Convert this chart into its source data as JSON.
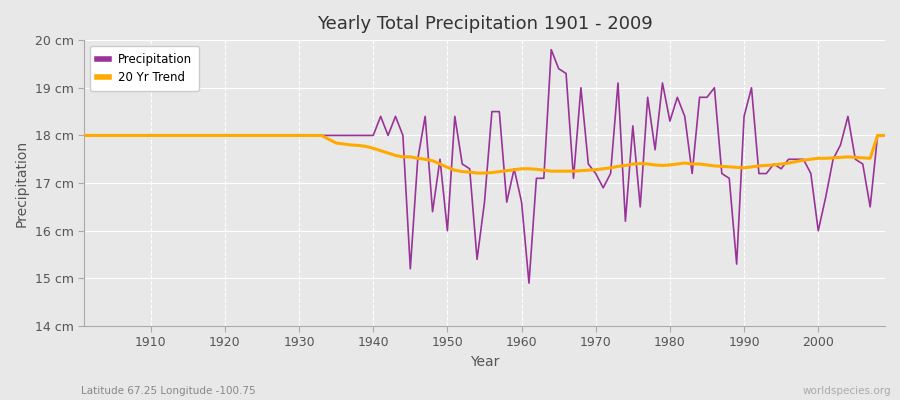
{
  "title": "Yearly Total Precipitation 1901 - 2009",
  "xlabel": "Year",
  "ylabel": "Precipitation",
  "bottom_left_label": "Latitude 67.25 Longitude -100.75",
  "bottom_right_label": "worldspecies.org",
  "ylim": [
    14,
    20
  ],
  "xlim": [
    1901,
    2009
  ],
  "yticks": [
    14,
    15,
    16,
    17,
    18,
    19,
    20
  ],
  "ytick_labels": [
    "14 cm",
    "15 cm",
    "16 cm",
    "17 cm",
    "18 cm",
    "19 cm",
    "20 cm"
  ],
  "xticks": [
    1910,
    1920,
    1930,
    1940,
    1950,
    1960,
    1970,
    1980,
    1990,
    2000
  ],
  "background_color": "#e8e8e8",
  "plot_bg_color": "#e8e8e8",
  "grid_color": "#ffffff",
  "precip_color": "#993399",
  "trend_color": "#ffaa00",
  "precip_linewidth": 1.2,
  "trend_linewidth": 2.2,
  "years": [
    1901,
    1902,
    1903,
    1904,
    1905,
    1906,
    1907,
    1908,
    1909,
    1910,
    1911,
    1912,
    1913,
    1914,
    1915,
    1916,
    1917,
    1918,
    1919,
    1920,
    1921,
    1922,
    1923,
    1924,
    1925,
    1926,
    1927,
    1928,
    1929,
    1930,
    1931,
    1932,
    1933,
    1934,
    1935,
    1936,
    1937,
    1938,
    1939,
    1940,
    1941,
    1942,
    1943,
    1944,
    1945,
    1946,
    1947,
    1948,
    1949,
    1950,
    1951,
    1952,
    1953,
    1954,
    1955,
    1956,
    1957,
    1958,
    1959,
    1960,
    1961,
    1962,
    1963,
    1964,
    1965,
    1966,
    1967,
    1968,
    1969,
    1970,
    1971,
    1972,
    1973,
    1974,
    1975,
    1976,
    1977,
    1978,
    1979,
    1980,
    1981,
    1982,
    1983,
    1984,
    1985,
    1986,
    1987,
    1988,
    1989,
    1990,
    1991,
    1992,
    1993,
    1994,
    1995,
    1996,
    1997,
    1998,
    1999,
    2000,
    2001,
    2002,
    2003,
    2004,
    2005,
    2006,
    2007,
    2008,
    2009
  ],
  "precip": [
    18.0,
    18.0,
    18.0,
    18.0,
    18.0,
    18.0,
    18.0,
    18.0,
    18.0,
    18.0,
    18.0,
    18.0,
    18.0,
    18.0,
    18.0,
    18.0,
    18.0,
    18.0,
    18.0,
    18.0,
    18.0,
    18.0,
    18.0,
    18.0,
    18.0,
    18.0,
    18.0,
    18.0,
    18.0,
    18.0,
    18.0,
    18.0,
    18.0,
    18.0,
    18.0,
    18.0,
    18.0,
    18.0,
    18.0,
    18.0,
    18.4,
    18.0,
    18.4,
    18.0,
    15.2,
    17.5,
    18.4,
    16.4,
    17.5,
    16.0,
    18.4,
    17.4,
    17.3,
    15.4,
    16.6,
    18.5,
    18.5,
    16.6,
    17.3,
    16.6,
    14.9,
    17.1,
    17.1,
    19.8,
    19.4,
    19.3,
    17.1,
    19.0,
    17.4,
    17.2,
    16.9,
    17.2,
    19.1,
    16.2,
    18.2,
    16.5,
    18.8,
    17.7,
    19.1,
    18.3,
    18.8,
    18.4,
    17.2,
    18.8,
    18.8,
    19.0,
    17.2,
    17.1,
    15.3,
    18.4,
    19.0,
    17.2,
    17.2,
    17.4,
    17.3,
    17.5,
    17.5,
    17.5,
    17.2,
    16.0,
    16.7,
    17.5,
    17.8,
    18.4,
    17.5,
    17.4,
    16.5,
    18.0,
    18.0
  ],
  "trend": [
    18.0,
    18.0,
    18.0,
    18.0,
    18.0,
    18.0,
    18.0,
    18.0,
    18.0,
    18.0,
    18.0,
    18.0,
    18.0,
    18.0,
    18.0,
    18.0,
    18.0,
    18.0,
    18.0,
    18.0,
    18.0,
    18.0,
    18.0,
    18.0,
    18.0,
    18.0,
    18.0,
    18.0,
    18.0,
    18.0,
    18.0,
    18.0,
    18.0,
    17.92,
    17.84,
    17.82,
    17.8,
    17.79,
    17.77,
    17.73,
    17.68,
    17.63,
    17.58,
    17.55,
    17.55,
    17.52,
    17.5,
    17.47,
    17.4,
    17.33,
    17.27,
    17.24,
    17.23,
    17.21,
    17.21,
    17.22,
    17.24,
    17.26,
    17.28,
    17.3,
    17.3,
    17.29,
    17.27,
    17.25,
    17.25,
    17.25,
    17.25,
    17.26,
    17.27,
    17.28,
    17.3,
    17.32,
    17.35,
    17.37,
    17.4,
    17.41,
    17.4,
    17.38,
    17.37,
    17.38,
    17.4,
    17.42,
    17.4,
    17.4,
    17.38,
    17.36,
    17.35,
    17.34,
    17.33,
    17.32,
    17.34,
    17.36,
    17.37,
    17.38,
    17.4,
    17.42,
    17.45,
    17.48,
    17.5,
    17.52,
    17.52,
    17.53,
    17.54,
    17.55,
    17.54,
    17.53,
    17.52,
    18.0,
    18.0
  ]
}
